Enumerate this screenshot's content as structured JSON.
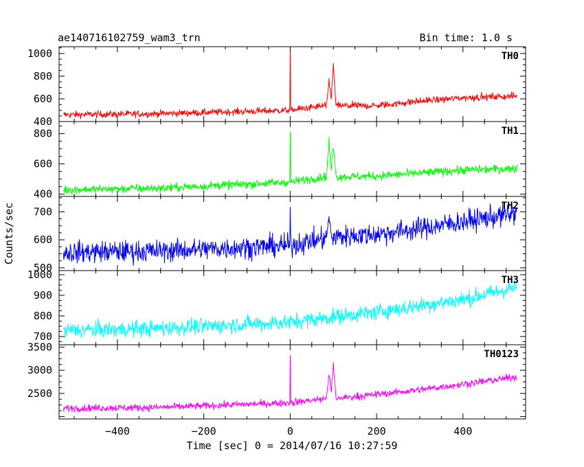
{
  "header": {
    "title": "ae140716102759_wam3_trn",
    "bin_time": "Bin time: 1.0 s"
  },
  "axes": {
    "xlabel": "Time [sec] 0 = 2014/07/16 10:27:59",
    "ylabel": "Counts/sec"
  },
  "chart_data": {
    "type": "line",
    "title": "ae140716102759_wam3_trn",
    "xlabel": "Time [sec] 0 = 2014/07/16 10:27:59",
    "ylabel": "Counts/sec",
    "xlim": [
      -535,
      545
    ],
    "x_ticks": [
      -400,
      -200,
      0,
      200,
      400
    ],
    "x_tick_labels": [
      "−400",
      "−200",
      "0",
      "200",
      "400"
    ],
    "data_range_x": [
      -525,
      525
    ],
    "grid": false,
    "panels": [
      {
        "name": "TH0",
        "color": "#ff0000",
        "ylim": [
          400,
          1060
        ],
        "yticks": [
          400,
          600,
          800,
          1000
        ],
        "anchors": [
          [
            -525,
            460
          ],
          [
            -300,
            470
          ],
          [
            0,
            500
          ],
          [
            90,
            545
          ],
          [
            105,
            540
          ],
          [
            200,
            540
          ],
          [
            300,
            580
          ],
          [
            400,
            610
          ],
          [
            525,
            625
          ]
        ],
        "noise": 22,
        "spikes": [
          [
            0,
            1060
          ],
          [
            90,
            800
          ],
          [
            100,
            960
          ]
        ]
      },
      {
        "name": "TH1",
        "color": "#00ff00",
        "ylim": [
          385,
          880
        ],
        "yticks": [
          400,
          600,
          800
        ],
        "anchors": [
          [
            -525,
            430
          ],
          [
            -300,
            440
          ],
          [
            0,
            480
          ],
          [
            90,
            520
          ],
          [
            105,
            515
          ],
          [
            200,
            520
          ],
          [
            300,
            540
          ],
          [
            400,
            560
          ],
          [
            525,
            570
          ]
        ],
        "noise": 20,
        "spikes": [
          [
            0,
            880
          ],
          [
            90,
            780
          ],
          [
            100,
            760
          ]
        ]
      },
      {
        "name": "TH2",
        "color": "#0000ff",
        "ylim": [
          490,
          755
        ],
        "yticks": [
          500,
          600,
          700
        ],
        "anchors": [
          [
            -525,
            555
          ],
          [
            -300,
            560
          ],
          [
            0,
            580
          ],
          [
            100,
            610
          ],
          [
            200,
            620
          ],
          [
            300,
            640
          ],
          [
            400,
            665
          ],
          [
            525,
            695
          ]
        ],
        "noise": 28,
        "spikes": [
          [
            0,
            755
          ],
          [
            90,
            700
          ]
        ]
      },
      {
        "name": "TH3",
        "color": "#00ffff",
        "ylim": [
          660,
          1020
        ],
        "yticks": [
          700,
          800,
          900,
          1000
        ],
        "anchors": [
          [
            -525,
            730
          ],
          [
            -300,
            740
          ],
          [
            0,
            770
          ],
          [
            200,
            820
          ],
          [
            300,
            850
          ],
          [
            400,
            880
          ],
          [
            525,
            940
          ]
        ],
        "noise": 28,
        "spikes": []
      },
      {
        "name": "TH0123",
        "color": "#ff00ff",
        "ylim": [
          1950,
          3550
        ],
        "yticks": [
          2500,
          3000,
          3500
        ],
        "anchors": [
          [
            -525,
            2180
          ],
          [
            -300,
            2200
          ],
          [
            0,
            2300
          ],
          [
            90,
            2400
          ],
          [
            105,
            2390
          ],
          [
            200,
            2480
          ],
          [
            300,
            2580
          ],
          [
            400,
            2700
          ],
          [
            525,
            2860
          ]
        ],
        "noise": 55,
        "spikes": [
          [
            0,
            3550
          ],
          [
            90,
            3050
          ],
          [
            100,
            3300
          ]
        ]
      }
    ]
  }
}
